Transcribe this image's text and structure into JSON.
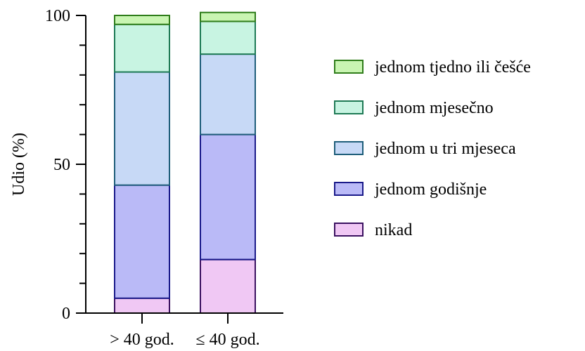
{
  "chart_data": {
    "type": "bar",
    "stacked": true,
    "title": "",
    "xlabel": "",
    "ylabel": "Udio (%)",
    "ylim": [
      0,
      100
    ],
    "yticks": [
      "0",
      "50",
      "100"
    ],
    "grid": false,
    "legend_position": "right",
    "categories": [
      "> 40 god.",
      "≤ 40 god."
    ],
    "series": [
      {
        "name": "nikad",
        "values": [
          5,
          18
        ],
        "fill": "#f0c8f4",
        "stroke": "#3b1160"
      },
      {
        "name": "jednom godišnje",
        "values": [
          38,
          42
        ],
        "fill": "#babaf7",
        "stroke": "#1a1a8a"
      },
      {
        "name": "jednom u tri mjeseca",
        "values": [
          38,
          27
        ],
        "fill": "#c7d9f6",
        "stroke": "#1f5e7a"
      },
      {
        "name": "jednom mjesečno",
        "values": [
          16,
          11
        ],
        "fill": "#c8f4e2",
        "stroke": "#1e7a55"
      },
      {
        "name": "jednom tjedno ili češće",
        "values": [
          3,
          3
        ],
        "fill": "#c9f5b2",
        "stroke": "#2f7d1a"
      }
    ]
  }
}
